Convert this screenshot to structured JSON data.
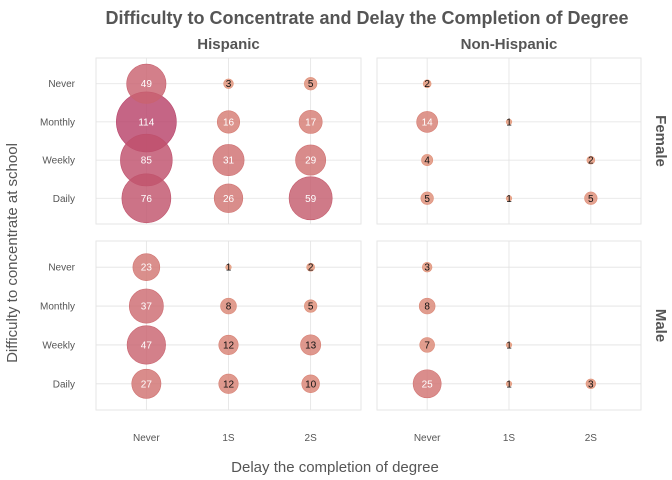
{
  "chart_data": {
    "type": "scatter",
    "subtype": "bubble",
    "title": "Difficulty to Concentrate and Delay the Completion of Degree",
    "xlabel": "Delay the completion of degree",
    "ylabel": "Difficulty to concentrate at school",
    "x_categories": [
      "Never",
      "1S",
      "2S"
    ],
    "y_categories": [
      "Never",
      "Monthly",
      "Weekly",
      "Daily"
    ],
    "column_facets": [
      "Hispanic",
      "Non-Hispanic"
    ],
    "row_facets": [
      "Female",
      "Male"
    ],
    "size_max": 114,
    "color_low": "#e8a07a",
    "color_high": "#b8436a",
    "panels": [
      {
        "column": "Hispanic",
        "row": "Female",
        "points": [
          {
            "x": "Never",
            "y": "Never",
            "value": 49
          },
          {
            "x": "1S",
            "y": "Never",
            "value": 3
          },
          {
            "x": "2S",
            "y": "Never",
            "value": 5
          },
          {
            "x": "Never",
            "y": "Monthly",
            "value": 114
          },
          {
            "x": "1S",
            "y": "Monthly",
            "value": 16
          },
          {
            "x": "2S",
            "y": "Monthly",
            "value": 17
          },
          {
            "x": "Never",
            "y": "Weekly",
            "value": 85
          },
          {
            "x": "1S",
            "y": "Weekly",
            "value": 31
          },
          {
            "x": "2S",
            "y": "Weekly",
            "value": 29
          },
          {
            "x": "Never",
            "y": "Daily",
            "value": 76
          },
          {
            "x": "1S",
            "y": "Daily",
            "value": 26
          },
          {
            "x": "2S",
            "y": "Daily",
            "value": 59
          }
        ]
      },
      {
        "column": "Non-Hispanic",
        "row": "Female",
        "points": [
          {
            "x": "Never",
            "y": "Never",
            "value": 2
          },
          {
            "x": "Never",
            "y": "Monthly",
            "value": 14
          },
          {
            "x": "1S",
            "y": "Monthly",
            "value": 1
          },
          {
            "x": "Never",
            "y": "Weekly",
            "value": 4
          },
          {
            "x": "2S",
            "y": "Weekly",
            "value": 2
          },
          {
            "x": "Never",
            "y": "Daily",
            "value": 5
          },
          {
            "x": "1S",
            "y": "Daily",
            "value": 1
          },
          {
            "x": "2S",
            "y": "Daily",
            "value": 5
          }
        ]
      },
      {
        "column": "Hispanic",
        "row": "Male",
        "points": [
          {
            "x": "Never",
            "y": "Never",
            "value": 23
          },
          {
            "x": "1S",
            "y": "Never",
            "value": 1
          },
          {
            "x": "2S",
            "y": "Never",
            "value": 2
          },
          {
            "x": "Never",
            "y": "Monthly",
            "value": 37
          },
          {
            "x": "1S",
            "y": "Monthly",
            "value": 8
          },
          {
            "x": "2S",
            "y": "Monthly",
            "value": 5
          },
          {
            "x": "Never",
            "y": "Weekly",
            "value": 47
          },
          {
            "x": "1S",
            "y": "Weekly",
            "value": 12
          },
          {
            "x": "2S",
            "y": "Weekly",
            "value": 13
          },
          {
            "x": "Never",
            "y": "Daily",
            "value": 27
          },
          {
            "x": "1S",
            "y": "Daily",
            "value": 12
          },
          {
            "x": "2S",
            "y": "Daily",
            "value": 10
          }
        ]
      },
      {
        "column": "Non-Hispanic",
        "row": "Male",
        "points": [
          {
            "x": "Never",
            "y": "Never",
            "value": 3
          },
          {
            "x": "Never",
            "y": "Monthly",
            "value": 8
          },
          {
            "x": "Never",
            "y": "Weekly",
            "value": 7
          },
          {
            "x": "1S",
            "y": "Weekly",
            "value": 1
          },
          {
            "x": "Never",
            "y": "Daily",
            "value": 25
          },
          {
            "x": "1S",
            "y": "Daily",
            "value": 1
          },
          {
            "x": "2S",
            "y": "Daily",
            "value": 3
          }
        ]
      }
    ]
  }
}
